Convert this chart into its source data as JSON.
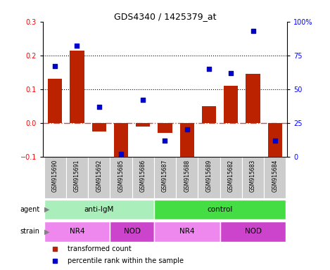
{
  "title": "GDS4340 / 1425379_at",
  "samples": [
    "GSM915690",
    "GSM915691",
    "GSM915692",
    "GSM915685",
    "GSM915686",
    "GSM915687",
    "GSM915688",
    "GSM915689",
    "GSM915682",
    "GSM915683",
    "GSM915684"
  ],
  "bar_values": [
    0.13,
    0.215,
    -0.025,
    -0.115,
    -0.01,
    -0.03,
    -0.115,
    0.05,
    0.11,
    0.145,
    -0.115
  ],
  "scatter_values": [
    67,
    82,
    37,
    2,
    42,
    12,
    20,
    65,
    62,
    93,
    12
  ],
  "ylim_left": [
    -0.1,
    0.3
  ],
  "ylim_right": [
    0,
    100
  ],
  "yticks_left": [
    -0.1,
    0.0,
    0.1,
    0.2,
    0.3
  ],
  "yticks_right": [
    0,
    25,
    50,
    75,
    100
  ],
  "yticklabels_right": [
    "0",
    "25",
    "50",
    "75",
    "100%"
  ],
  "bar_color": "#bb2200",
  "scatter_color": "#0000cc",
  "hline_color": "#dd4444",
  "dotted_color": "#000000",
  "agent_label": "agent",
  "strain_label": "strain",
  "agent_groups": [
    {
      "label": "anti-IgM",
      "start": 0,
      "end": 5,
      "color": "#aaeebb"
    },
    {
      "label": "control",
      "start": 5,
      "end": 11,
      "color": "#44dd44"
    }
  ],
  "strain_groups": [
    {
      "label": "NR4",
      "start": 0,
      "end": 3,
      "color": "#ee88ee"
    },
    {
      "label": "NOD",
      "start": 3,
      "end": 5,
      "color": "#cc44cc"
    },
    {
      "label": "NR4",
      "start": 5,
      "end": 8,
      "color": "#ee88ee"
    },
    {
      "label": "NOD",
      "start": 8,
      "end": 11,
      "color": "#cc44cc"
    }
  ],
  "legend_bar_label": "transformed count",
  "legend_scatter_label": "percentile rank within the sample",
  "tick_bg_color": "#cccccc",
  "tick_sep_color": "#aaaaaa"
}
